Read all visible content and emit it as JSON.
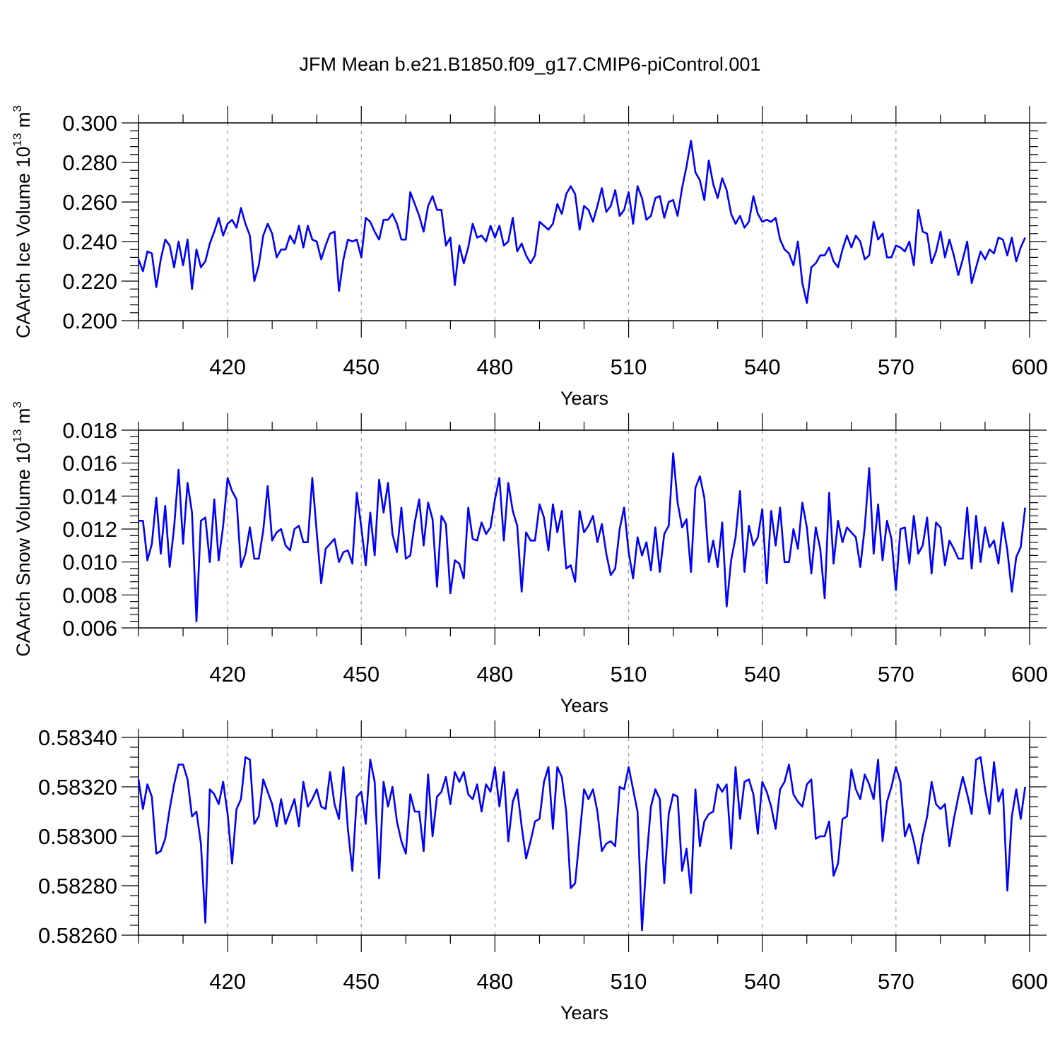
{
  "title": "JFM Mean b.e21.B1850.f09_g17.CMIP6-piControl.001",
  "line_color": "#0000ff",
  "chart_data": [
    {
      "type": "line",
      "ylabel_main": "CAArch Ice Volume 10",
      "ylabel_exp": "13",
      "ylabel_unit": "m",
      "ylabel_unit_exp": "3",
      "xlabel": "Years",
      "xlim": [
        400,
        600
      ],
      "ylim": [
        0.2,
        0.3
      ],
      "xticks": [
        420,
        450,
        480,
        510,
        540,
        570,
        600
      ],
      "xtick_labels": [
        "420",
        "450",
        "480",
        "510",
        "540",
        "570",
        "600"
      ],
      "yticks": [
        0.2,
        0.22,
        0.24,
        0.26,
        0.28,
        0.3
      ],
      "ytick_labels": [
        "0.200",
        "0.220",
        "0.240",
        "0.260",
        "0.280",
        "0.300"
      ],
      "grid": "dashed vertical at major x ticks",
      "x_start": 400,
      "values": [
        0.231,
        0.225,
        0.235,
        0.234,
        0.217,
        0.231,
        0.241,
        0.238,
        0.227,
        0.24,
        0.228,
        0.241,
        0.216,
        0.236,
        0.227,
        0.23,
        0.239,
        0.245,
        0.252,
        0.243,
        0.249,
        0.251,
        0.247,
        0.257,
        0.249,
        0.243,
        0.22,
        0.228,
        0.243,
        0.249,
        0.244,
        0.232,
        0.236,
        0.236,
        0.243,
        0.239,
        0.248,
        0.237,
        0.248,
        0.241,
        0.24,
        0.231,
        0.238,
        0.244,
        0.245,
        0.215,
        0.231,
        0.241,
        0.24,
        0.241,
        0.232,
        0.252,
        0.25,
        0.245,
        0.241,
        0.251,
        0.251,
        0.254,
        0.249,
        0.241,
        0.241,
        0.265,
        0.259,
        0.253,
        0.245,
        0.258,
        0.263,
        0.256,
        0.256,
        0.238,
        0.242,
        0.218,
        0.238,
        0.229,
        0.237,
        0.249,
        0.242,
        0.243,
        0.24,
        0.248,
        0.242,
        0.248,
        0.238,
        0.24,
        0.252,
        0.235,
        0.239,
        0.233,
        0.229,
        0.233,
        0.25,
        0.248,
        0.246,
        0.249,
        0.259,
        0.254,
        0.264,
        0.268,
        0.264,
        0.246,
        0.258,
        0.256,
        0.25,
        0.258,
        0.267,
        0.255,
        0.258,
        0.266,
        0.253,
        0.256,
        0.265,
        0.249,
        0.268,
        0.262,
        0.251,
        0.253,
        0.262,
        0.263,
        0.252,
        0.26,
        0.261,
        0.253,
        0.267,
        0.278,
        0.291,
        0.275,
        0.271,
        0.261,
        0.281,
        0.269,
        0.262,
        0.272,
        0.266,
        0.254,
        0.249,
        0.253,
        0.247,
        0.25,
        0.263,
        0.254,
        0.25,
        0.251,
        0.25,
        0.252,
        0.241,
        0.236,
        0.234,
        0.228,
        0.24,
        0.219,
        0.209,
        0.227,
        0.229,
        0.233,
        0.233,
        0.237,
        0.23,
        0.227,
        0.236,
        0.243,
        0.237,
        0.243,
        0.24,
        0.231,
        0.233,
        0.25,
        0.241,
        0.244,
        0.232,
        0.232,
        0.238,
        0.237,
        0.235,
        0.24,
        0.228,
        0.256,
        0.245,
        0.244,
        0.229,
        0.235,
        0.245,
        0.232,
        0.241,
        0.233,
        0.223,
        0.231,
        0.24,
        0.219,
        0.227,
        0.235,
        0.231,
        0.236,
        0.234,
        0.242,
        0.241,
        0.233,
        0.242,
        0.23,
        0.237,
        0.242
      ]
    },
    {
      "type": "line",
      "ylabel_main": "CAArch Snow Volume 10",
      "ylabel_exp": "13",
      "ylabel_unit": "m",
      "ylabel_unit_exp": "3",
      "xlabel": "Years",
      "xlim": [
        400,
        600
      ],
      "ylim": [
        0.006,
        0.018
      ],
      "xticks": [
        420,
        450,
        480,
        510,
        540,
        570,
        600
      ],
      "xtick_labels": [
        "420",
        "450",
        "480",
        "510",
        "540",
        "570",
        "600"
      ],
      "yticks": [
        0.006,
        0.008,
        0.01,
        0.012,
        0.014,
        0.016,
        0.018
      ],
      "ytick_labels": [
        "0.006",
        "0.008",
        "0.010",
        "0.012",
        "0.014",
        "0.016",
        "0.018"
      ],
      "grid": "dashed vertical at major x ticks",
      "x_start": 400,
      "values": [
        0.0125,
        0.0125,
        0.0101,
        0.0111,
        0.0139,
        0.0105,
        0.0134,
        0.0097,
        0.0121,
        0.0156,
        0.0111,
        0.0148,
        0.013,
        0.0064,
        0.0125,
        0.0127,
        0.01,
        0.0138,
        0.0101,
        0.0122,
        0.0151,
        0.0143,
        0.0138,
        0.0097,
        0.0105,
        0.0121,
        0.0102,
        0.0102,
        0.0119,
        0.0146,
        0.0113,
        0.0118,
        0.012,
        0.011,
        0.0107,
        0.012,
        0.0122,
        0.0112,
        0.0112,
        0.0151,
        0.0118,
        0.0087,
        0.0108,
        0.0111,
        0.0114,
        0.01,
        0.0106,
        0.0107,
        0.0099,
        0.0142,
        0.0121,
        0.0098,
        0.013,
        0.0104,
        0.015,
        0.013,
        0.0148,
        0.0117,
        0.0106,
        0.0133,
        0.0102,
        0.0104,
        0.0124,
        0.0138,
        0.011,
        0.0136,
        0.0126,
        0.0085,
        0.0128,
        0.0123,
        0.0081,
        0.0101,
        0.0099,
        0.009,
        0.0133,
        0.0114,
        0.0113,
        0.0124,
        0.0117,
        0.0121,
        0.0138,
        0.0151,
        0.0113,
        0.0148,
        0.0131,
        0.0122,
        0.0082,
        0.0118,
        0.0113,
        0.0113,
        0.0135,
        0.0127,
        0.0107,
        0.0135,
        0.0118,
        0.0131,
        0.0096,
        0.0098,
        0.0088,
        0.0131,
        0.0118,
        0.0122,
        0.0128,
        0.0112,
        0.0123,
        0.0105,
        0.0092,
        0.0096,
        0.012,
        0.0133,
        0.0106,
        0.009,
        0.0115,
        0.0104,
        0.0112,
        0.0095,
        0.0121,
        0.0094,
        0.0117,
        0.0122,
        0.0166,
        0.0136,
        0.0121,
        0.0126,
        0.0094,
        0.0145,
        0.0152,
        0.0139,
        0.01,
        0.0113,
        0.0097,
        0.0124,
        0.0073,
        0.0101,
        0.0115,
        0.0143,
        0.0094,
        0.0122,
        0.011,
        0.0115,
        0.0132,
        0.0087,
        0.0131,
        0.011,
        0.0133,
        0.01,
        0.01,
        0.012,
        0.0108,
        0.0136,
        0.0121,
        0.0093,
        0.0121,
        0.0108,
        0.0078,
        0.0142,
        0.0099,
        0.0125,
        0.0112,
        0.0121,
        0.0118,
        0.0115,
        0.0097,
        0.0121,
        0.0157,
        0.0105,
        0.0135,
        0.0101,
        0.0125,
        0.0114,
        0.0083,
        0.012,
        0.0121,
        0.0099,
        0.0128,
        0.0105,
        0.011,
        0.0127,
        0.0093,
        0.0124,
        0.0121,
        0.0098,
        0.0113,
        0.0108,
        0.0102,
        0.0102,
        0.0133,
        0.0096,
        0.0128,
        0.01,
        0.0121,
        0.0109,
        0.0113,
        0.0099,
        0.0124,
        0.0107,
        0.0082,
        0.0103,
        0.0109,
        0.0133
      ]
    },
    {
      "type": "line",
      "xlabel": "Years",
      "xlim": [
        400,
        600
      ],
      "ylim": [
        0.5826,
        0.5834
      ],
      "xticks": [
        420,
        450,
        480,
        510,
        540,
        570,
        600
      ],
      "xtick_labels": [
        "420",
        "450",
        "480",
        "510",
        "540",
        "570",
        "600"
      ],
      "yticks": [
        0.5826,
        0.5828,
        0.583,
        0.5832,
        0.5834
      ],
      "ytick_labels": [
        "0.58260",
        "0.58280",
        "0.58300",
        "0.58320",
        "0.58340"
      ],
      "grid": "dashed vertical at major x ticks",
      "x_start": 400,
      "values": [
        0.58323,
        0.58311,
        0.58321,
        0.58316,
        0.58293,
        0.58294,
        0.58299,
        0.58311,
        0.58321,
        0.58329,
        0.58329,
        0.58323,
        0.58308,
        0.5831,
        0.58297,
        0.58265,
        0.58319,
        0.58317,
        0.58313,
        0.58322,
        0.58309,
        0.58289,
        0.58311,
        0.58315,
        0.58332,
        0.58331,
        0.58305,
        0.58308,
        0.58323,
        0.58318,
        0.58313,
        0.58304,
        0.58315,
        0.58305,
        0.5831,
        0.58315,
        0.58304,
        0.58322,
        0.58312,
        0.58315,
        0.58319,
        0.58312,
        0.58311,
        0.58326,
        0.58313,
        0.58307,
        0.58328,
        0.58303,
        0.58286,
        0.58316,
        0.58318,
        0.58305,
        0.58331,
        0.58322,
        0.58283,
        0.58322,
        0.58312,
        0.5832,
        0.58306,
        0.58298,
        0.58293,
        0.58317,
        0.5831,
        0.5831,
        0.58294,
        0.58325,
        0.583,
        0.58316,
        0.58318,
        0.58324,
        0.58313,
        0.58326,
        0.58322,
        0.58326,
        0.58317,
        0.58315,
        0.58321,
        0.5831,
        0.58321,
        0.58318,
        0.58328,
        0.58312,
        0.58326,
        0.58298,
        0.58314,
        0.58319,
        0.58304,
        0.58291,
        0.58298,
        0.58306,
        0.58307,
        0.58322,
        0.58328,
        0.58303,
        0.58328,
        0.58324,
        0.5831,
        0.58279,
        0.58281,
        0.583,
        0.58319,
        0.58315,
        0.58319,
        0.5831,
        0.58294,
        0.58297,
        0.58298,
        0.58296,
        0.5832,
        0.58319,
        0.58328,
        0.58319,
        0.5831,
        0.58262,
        0.5829,
        0.58312,
        0.58319,
        0.58315,
        0.58281,
        0.58309,
        0.58317,
        0.58316,
        0.58286,
        0.58295,
        0.58277,
        0.58319,
        0.58296,
        0.58306,
        0.58309,
        0.5831,
        0.58321,
        0.58318,
        0.58321,
        0.58295,
        0.58328,
        0.58307,
        0.58322,
        0.58323,
        0.58317,
        0.58301,
        0.58322,
        0.58318,
        0.58312,
        0.58303,
        0.58319,
        0.58322,
        0.58329,
        0.58317,
        0.58314,
        0.58312,
        0.58321,
        0.58323,
        0.58299,
        0.583,
        0.583,
        0.58306,
        0.58284,
        0.58289,
        0.58307,
        0.58308,
        0.58327,
        0.58319,
        0.58315,
        0.58325,
        0.58321,
        0.58315,
        0.58331,
        0.58298,
        0.58314,
        0.5832,
        0.58328,
        0.58322,
        0.583,
        0.58305,
        0.58298,
        0.58289,
        0.583,
        0.58308,
        0.58322,
        0.58313,
        0.58311,
        0.58313,
        0.58296,
        0.58307,
        0.58316,
        0.58324,
        0.58317,
        0.58309,
        0.58331,
        0.58332,
        0.58319,
        0.58309,
        0.5833,
        0.58314,
        0.58319,
        0.58278,
        0.58308,
        0.58319,
        0.58307,
        0.5832
      ]
    }
  ]
}
